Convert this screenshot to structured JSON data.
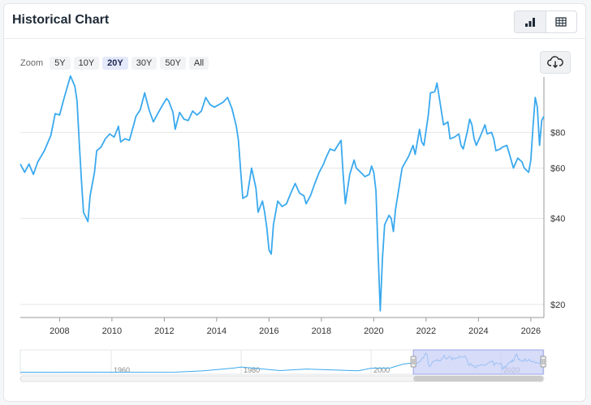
{
  "header": {
    "title": "Historical Chart"
  },
  "view_toggle": {
    "chart_icon": "bar-chart-icon",
    "table_icon": "table-icon"
  },
  "zoom": {
    "label": "Zoom",
    "options": [
      "5Y",
      "10Y",
      "20Y",
      "30Y",
      "50Y",
      "All"
    ],
    "selected": "20Y"
  },
  "download": {
    "icon": "cloud-download-icon"
  },
  "colors": {
    "line": "#3aa9ee",
    "navigator_fill": "#c6cdf7",
    "grid": "#e6e6e6"
  },
  "chart_data": {
    "type": "line",
    "title": "",
    "xlabel": "",
    "ylabel": "",
    "y_scale": "log",
    "x_range": [
      "2006-07",
      "2026-07"
    ],
    "ylim": [
      18,
      125
    ],
    "x_ticks": [
      "2008",
      "2010",
      "2012",
      "2014",
      "2016",
      "2018",
      "2020",
      "2022",
      "2024",
      "2026"
    ],
    "y_ticks": [
      {
        "value": 20,
        "label": "$20"
      },
      {
        "value": 40,
        "label": "$40"
      },
      {
        "value": 60,
        "label": "$60"
      },
      {
        "value": 80,
        "label": "$80"
      }
    ],
    "series": [
      {
        "values": [
          [
            "2006-07",
            62
          ],
          [
            "2006-09",
            58
          ],
          [
            "2006-11",
            62
          ],
          [
            "2007-01",
            57
          ],
          [
            "2007-03",
            63
          ],
          [
            "2007-06",
            69
          ],
          [
            "2007-09",
            78
          ],
          [
            "2007-11",
            93
          ],
          [
            "2008-01",
            92
          ],
          [
            "2008-03",
            105
          ],
          [
            "2008-06",
            126
          ],
          [
            "2008-08",
            116
          ],
          [
            "2008-09",
            103
          ],
          [
            "2008-10",
            74
          ],
          [
            "2008-11",
            55
          ],
          [
            "2008-12",
            42
          ],
          [
            "2009-02",
            39
          ],
          [
            "2009-03",
            48
          ],
          [
            "2009-05",
            58
          ],
          [
            "2009-06",
            69
          ],
          [
            "2009-08",
            71
          ],
          [
            "2009-10",
            76
          ],
          [
            "2009-12",
            79
          ],
          [
            "2010-02",
            77
          ],
          [
            "2010-04",
            84
          ],
          [
            "2010-05",
            74
          ],
          [
            "2010-07",
            76
          ],
          [
            "2010-09",
            75
          ],
          [
            "2010-11",
            85
          ],
          [
            "2010-12",
            91
          ],
          [
            "2011-02",
            96
          ],
          [
            "2011-04",
            110
          ],
          [
            "2011-06",
            96
          ],
          [
            "2011-08",
            87
          ],
          [
            "2011-10",
            93
          ],
          [
            "2011-12",
            99
          ],
          [
            "2012-02",
            105
          ],
          [
            "2012-03",
            103
          ],
          [
            "2012-05",
            94
          ],
          [
            "2012-06",
            82
          ],
          [
            "2012-08",
            94
          ],
          [
            "2012-10",
            89
          ],
          [
            "2012-12",
            88
          ],
          [
            "2013-02",
            95
          ],
          [
            "2013-04",
            92
          ],
          [
            "2013-06",
            95
          ],
          [
            "2013-08",
            106
          ],
          [
            "2013-10",
            100
          ],
          [
            "2013-12",
            98
          ],
          [
            "2014-02",
            100
          ],
          [
            "2014-04",
            102
          ],
          [
            "2014-06",
            106
          ],
          [
            "2014-08",
            97
          ],
          [
            "2014-10",
            84
          ],
          [
            "2014-11",
            75
          ],
          [
            "2014-12",
            59
          ],
          [
            "2015-01",
            47
          ],
          [
            "2015-03",
            48
          ],
          [
            "2015-05",
            60
          ],
          [
            "2015-07",
            51
          ],
          [
            "2015-08",
            42
          ],
          [
            "2015-10",
            46
          ],
          [
            "2015-11",
            42
          ],
          [
            "2015-12",
            37
          ],
          [
            "2016-01",
            31
          ],
          [
            "2016-02",
            30
          ],
          [
            "2016-03",
            38
          ],
          [
            "2016-05",
            46
          ],
          [
            "2016-07",
            44
          ],
          [
            "2016-09",
            45
          ],
          [
            "2016-11",
            49
          ],
          [
            "2017-01",
            53
          ],
          [
            "2017-03",
            49
          ],
          [
            "2017-05",
            48
          ],
          [
            "2017-06",
            45
          ],
          [
            "2017-08",
            48
          ],
          [
            "2017-10",
            53
          ],
          [
            "2017-12",
            58
          ],
          [
            "2018-02",
            62
          ],
          [
            "2018-03",
            65
          ],
          [
            "2018-05",
            70
          ],
          [
            "2018-07",
            69
          ],
          [
            "2018-09",
            73
          ],
          [
            "2018-10",
            75
          ],
          [
            "2018-11",
            57
          ],
          [
            "2018-12",
            45
          ],
          [
            "2019-02",
            57
          ],
          [
            "2019-04",
            64
          ],
          [
            "2019-05",
            60
          ],
          [
            "2019-07",
            58
          ],
          [
            "2019-09",
            56
          ],
          [
            "2019-11",
            57
          ],
          [
            "2019-12",
            61
          ],
          [
            "2020-01",
            58
          ],
          [
            "2020-02",
            50
          ],
          [
            "2020-03",
            30
          ],
          [
            "2020-04",
            19
          ],
          [
            "2020-05",
            29
          ],
          [
            "2020-06",
            38
          ],
          [
            "2020-08",
            41
          ],
          [
            "2020-09",
            40
          ],
          [
            "2020-10",
            36
          ],
          [
            "2020-11",
            43
          ],
          [
            "2020-12",
            48
          ],
          [
            "2021-02",
            60
          ],
          [
            "2021-03",
            62
          ],
          [
            "2021-05",
            66
          ],
          [
            "2021-07",
            72
          ],
          [
            "2021-08",
            67
          ],
          [
            "2021-10",
            82
          ],
          [
            "2021-11",
            74
          ],
          [
            "2021-12",
            72
          ],
          [
            "2022-02",
            92
          ],
          [
            "2022-03",
            110
          ],
          [
            "2022-05",
            111
          ],
          [
            "2022-06",
            119
          ],
          [
            "2022-08",
            95
          ],
          [
            "2022-09",
            85
          ],
          [
            "2022-11",
            87
          ],
          [
            "2022-12",
            76
          ],
          [
            "2023-02",
            77
          ],
          [
            "2023-04",
            79
          ],
          [
            "2023-05",
            72
          ],
          [
            "2023-06",
            70
          ],
          [
            "2023-08",
            81
          ],
          [
            "2023-09",
            89
          ],
          [
            "2023-10",
            85
          ],
          [
            "2023-11",
            76
          ],
          [
            "2023-12",
            72
          ],
          [
            "2024-02",
            78
          ],
          [
            "2024-04",
            85
          ],
          [
            "2024-05",
            79
          ],
          [
            "2024-07",
            80
          ],
          [
            "2024-08",
            76
          ],
          [
            "2024-09",
            69
          ],
          [
            "2024-11",
            70
          ],
          [
            "2024-12",
            71
          ],
          [
            "2025-02",
            72
          ],
          [
            "2025-03",
            68
          ],
          [
            "2025-05",
            60
          ],
          [
            "2025-07",
            65
          ],
          [
            "2025-09",
            63
          ],
          [
            "2025-10",
            60
          ],
          [
            "2025-11",
            59
          ],
          [
            "2025-12",
            58
          ],
          [
            "2026-01",
            64
          ],
          [
            "2026-02",
            84
          ],
          [
            "2026-03",
            106
          ],
          [
            "2026-04",
            98
          ],
          [
            "2026-05",
            72
          ],
          [
            "2026-06",
            88
          ],
          [
            "2026-07",
            91
          ]
        ]
      }
    ],
    "navigator": {
      "x_ticks": [
        "1960",
        "1980",
        "2000",
        "2020"
      ],
      "selected_range": [
        "2006-07",
        "2026-07"
      ]
    }
  }
}
